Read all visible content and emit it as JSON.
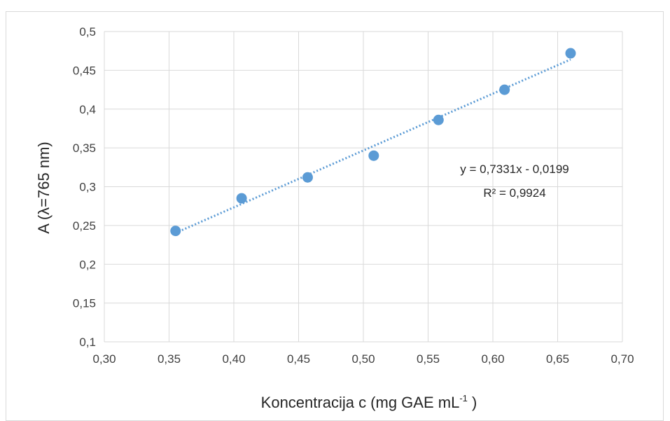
{
  "chart_data": {
    "type": "scatter",
    "title": "",
    "xlabel": "Koncentracija c (mg GAE mL",
    "xlabel_superscript": "-1",
    "xlabel_suffix": " )",
    "ylabel": "A (λ=765 nm)",
    "xlim": [
      0.3,
      0.7
    ],
    "ylim": [
      0.1,
      0.5
    ],
    "x_ticks": [
      0.3,
      0.35,
      0.4,
      0.45,
      0.5,
      0.55,
      0.6,
      0.65,
      0.7
    ],
    "x_tick_labels": [
      "0,30",
      "0,35",
      "0,40",
      "0,45",
      "0,50",
      "0,55",
      "0,60",
      "0,65",
      "0,70"
    ],
    "y_ticks": [
      0.1,
      0.15,
      0.2,
      0.25,
      0.3,
      0.35,
      0.4,
      0.45,
      0.5
    ],
    "y_tick_labels": [
      "0,1",
      "0,15",
      "0,2",
      "0,25",
      "0,3",
      "0,35",
      "0,4",
      "0,45",
      "0,5"
    ],
    "grid": true,
    "legend": "none",
    "series": [
      {
        "x": [
          0.355,
          0.406,
          0.457,
          0.508,
          0.558,
          0.609,
          0.66
        ],
        "y": [
          0.243,
          0.285,
          0.312,
          0.34,
          0.386,
          0.425,
          0.472
        ],
        "color": "#5b9bd5"
      }
    ],
    "trendline": {
      "type": "linear",
      "slope": 0.7331,
      "intercept": -0.0199,
      "color": "#5b9bd5",
      "style": "dotted",
      "equation": "y = 0,7331x - 0,0199",
      "r_squared": "R² = 0,9924"
    }
  }
}
